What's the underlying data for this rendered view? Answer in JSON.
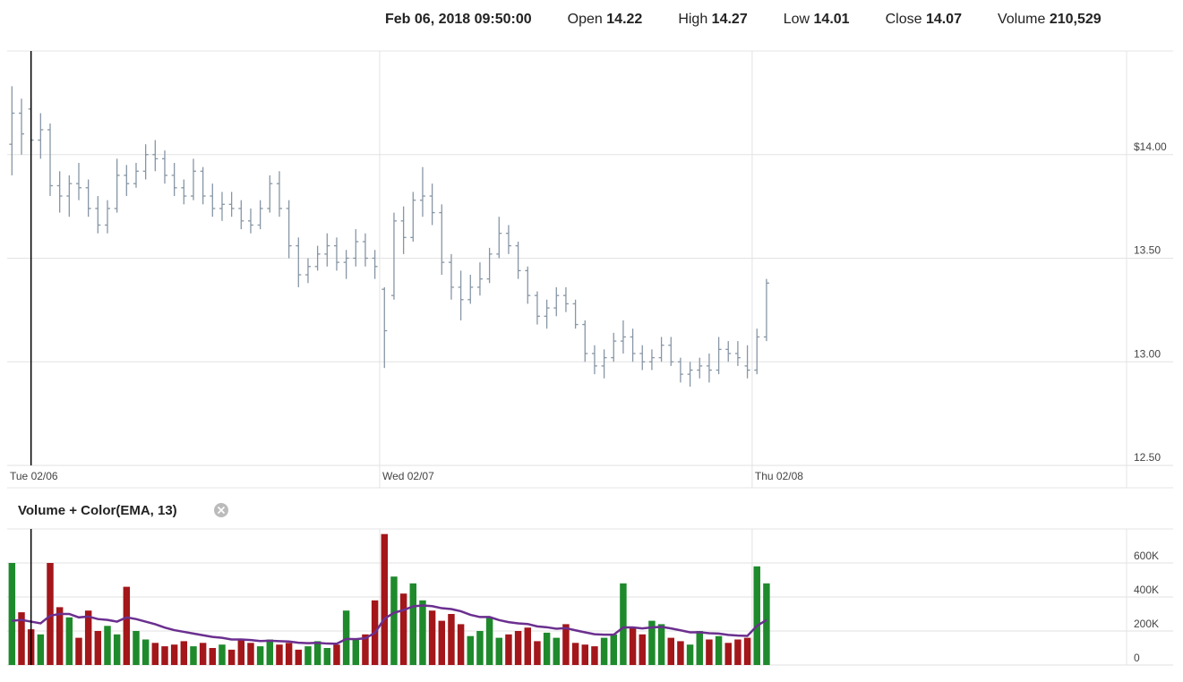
{
  "header": {
    "datetime": "Feb 06, 2018 09:50:00",
    "fields": [
      {
        "label": "Open",
        "value": "14.22"
      },
      {
        "label": "High",
        "value": "14.27"
      },
      {
        "label": "Low",
        "value": "14.01"
      },
      {
        "label": "Close",
        "value": "14.07"
      },
      {
        "label": "Volume",
        "value": "210,529"
      }
    ]
  },
  "chart_data": [
    {
      "type": "ohlc",
      "color": "#8796a5",
      "crosshair_index": 2,
      "xlim": [
        -0.5,
        116.7
      ],
      "xticks": [
        {
          "value": -0.5,
          "label": "Tue 02/06"
        },
        {
          "value": 38.5,
          "label": "Wed 02/07"
        },
        {
          "value": 77.5,
          "label": "Thu 02/08"
        }
      ],
      "ylim": [
        12.5,
        14.5
      ],
      "yticks": [
        {
          "value": 12.5,
          "label": "12.50"
        },
        {
          "value": 13,
          "label": "13.00"
        },
        {
          "value": 13.5,
          "label": "13.50"
        },
        {
          "value": 14,
          "label": "$14.00"
        }
      ],
      "grid": true,
      "ohlc": [
        [
          14.05,
          14.33,
          13.9,
          14.2
        ],
        [
          14.2,
          14.27,
          14.0,
          14.1
        ],
        [
          14.22,
          14.27,
          14.01,
          14.07
        ],
        [
          14.07,
          14.2,
          13.98,
          14.12
        ],
        [
          14.12,
          14.15,
          13.8,
          13.85
        ],
        [
          13.85,
          13.92,
          13.72,
          13.8
        ],
        [
          13.8,
          13.9,
          13.7,
          13.86
        ],
        [
          13.86,
          13.96,
          13.78,
          13.84
        ],
        [
          13.84,
          13.88,
          13.7,
          13.74
        ],
        [
          13.74,
          13.8,
          13.62,
          13.66
        ],
        [
          13.66,
          13.78,
          13.62,
          13.74
        ],
        [
          13.74,
          13.98,
          13.72,
          13.9
        ],
        [
          13.9,
          13.95,
          13.8,
          13.86
        ],
        [
          13.86,
          13.96,
          13.84,
          13.92
        ],
        [
          13.92,
          14.05,
          13.88,
          14.0
        ],
        [
          14.0,
          14.07,
          13.92,
          13.98
        ],
        [
          13.98,
          14.02,
          13.86,
          13.9
        ],
        [
          13.9,
          13.96,
          13.8,
          13.84
        ],
        [
          13.84,
          13.88,
          13.76,
          13.8
        ],
        [
          13.8,
          13.98,
          13.78,
          13.92
        ],
        [
          13.92,
          13.94,
          13.76,
          13.8
        ],
        [
          13.8,
          13.86,
          13.7,
          13.74
        ],
        [
          13.74,
          13.82,
          13.68,
          13.76
        ],
        [
          13.76,
          13.82,
          13.7,
          13.74
        ],
        [
          13.74,
          13.78,
          13.64,
          13.68
        ],
        [
          13.68,
          13.74,
          13.62,
          13.66
        ],
        [
          13.66,
          13.78,
          13.64,
          13.74
        ],
        [
          13.74,
          13.9,
          13.72,
          13.86
        ],
        [
          13.86,
          13.92,
          13.7,
          13.74
        ],
        [
          13.74,
          13.78,
          13.5,
          13.56
        ],
        [
          13.56,
          13.6,
          13.36,
          13.42
        ],
        [
          13.42,
          13.5,
          13.38,
          13.46
        ],
        [
          13.46,
          13.56,
          13.44,
          13.52
        ],
        [
          13.52,
          13.62,
          13.46,
          13.56
        ],
        [
          13.56,
          13.6,
          13.44,
          13.48
        ],
        [
          13.48,
          13.54,
          13.4,
          13.5
        ],
        [
          13.5,
          13.64,
          13.46,
          13.58
        ],
        [
          13.58,
          13.62,
          13.46,
          13.5
        ],
        [
          13.5,
          13.54,
          13.4,
          13.46
        ],
        [
          13.35,
          13.36,
          12.97,
          13.15
        ],
        [
          13.32,
          13.72,
          13.3,
          13.68
        ],
        [
          13.68,
          13.75,
          13.52,
          13.6
        ],
        [
          13.6,
          13.82,
          13.58,
          13.78
        ],
        [
          13.78,
          13.94,
          13.7,
          13.8
        ],
        [
          13.8,
          13.86,
          13.66,
          13.72
        ],
        [
          13.72,
          13.76,
          13.42,
          13.48
        ],
        [
          13.48,
          13.52,
          13.3,
          13.36
        ],
        [
          13.36,
          13.44,
          13.2,
          13.3
        ],
        [
          13.3,
          13.42,
          13.28,
          13.36
        ],
        [
          13.36,
          13.48,
          13.32,
          13.4
        ],
        [
          13.4,
          13.55,
          13.38,
          13.52
        ],
        [
          13.52,
          13.7,
          13.5,
          13.62
        ],
        [
          13.62,
          13.66,
          13.52,
          13.56
        ],
        [
          13.56,
          13.58,
          13.4,
          13.44
        ],
        [
          13.44,
          13.46,
          13.28,
          13.32
        ],
        [
          13.32,
          13.34,
          13.18,
          13.22
        ],
        [
          13.22,
          13.3,
          13.16,
          13.26
        ],
        [
          13.26,
          13.36,
          13.22,
          13.32
        ],
        [
          13.32,
          13.36,
          13.24,
          13.28
        ],
        [
          13.28,
          13.3,
          13.16,
          13.18
        ],
        [
          13.18,
          13.2,
          13.0,
          13.04
        ],
        [
          13.04,
          13.08,
          12.94,
          12.98
        ],
        [
          12.98,
          13.06,
          12.92,
          13.02
        ],
        [
          13.02,
          13.14,
          13.0,
          13.1
        ],
        [
          13.1,
          13.2,
          13.04,
          13.12
        ],
        [
          13.12,
          13.16,
          13.0,
          13.04
        ],
        [
          13.04,
          13.08,
          12.96,
          13.0
        ],
        [
          13.0,
          13.06,
          12.96,
          13.02
        ],
        [
          13.02,
          13.12,
          13.0,
          13.08
        ],
        [
          13.08,
          13.12,
          12.98,
          13.0
        ],
        [
          13.0,
          13.02,
          12.9,
          12.94
        ],
        [
          12.94,
          13.0,
          12.88,
          12.96
        ],
        [
          12.96,
          13.02,
          12.92,
          12.98
        ],
        [
          12.98,
          13.04,
          12.9,
          12.96
        ],
        [
          12.96,
          13.12,
          12.94,
          13.06
        ],
        [
          13.06,
          13.1,
          13.0,
          13.04
        ],
        [
          13.04,
          13.1,
          12.98,
          13.02
        ],
        [
          12.98,
          13.08,
          12.92,
          12.96
        ],
        [
          12.96,
          13.16,
          12.94,
          13.12
        ],
        [
          13.12,
          13.4,
          13.1,
          13.38
        ]
      ]
    },
    {
      "type": "bar",
      "title": "Volume + Color(EMA, 13)",
      "up_color": "#1e8a2c",
      "down_color": "#a3161a",
      "ylim": [
        0,
        800000
      ],
      "yticks": [
        0,
        {
          "value": 200000,
          "label": "200K"
        },
        {
          "value": 400000,
          "label": "400K"
        },
        {
          "value": 600000,
          "label": "600K"
        }
      ],
      "grid": true,
      "values": [
        600000,
        310000,
        210000,
        180000,
        600000,
        340000,
        280000,
        160000,
        320000,
        200000,
        230000,
        180000,
        460000,
        200000,
        150000,
        130000,
        110000,
        120000,
        140000,
        110000,
        130000,
        100000,
        120000,
        90000,
        150000,
        130000,
        110000,
        150000,
        120000,
        130000,
        90000,
        110000,
        140000,
        100000,
        120000,
        320000,
        150000,
        180000,
        380000,
        770000,
        520000,
        420000,
        480000,
        380000,
        320000,
        260000,
        300000,
        240000,
        170000,
        200000,
        280000,
        160000,
        180000,
        200000,
        220000,
        140000,
        190000,
        160000,
        240000,
        130000,
        120000,
        110000,
        160000,
        180000,
        480000,
        220000,
        180000,
        260000,
        240000,
        160000,
        140000,
        120000,
        200000,
        150000,
        170000,
        130000,
        150000,
        160000,
        580000,
        480000
      ],
      "ema": {
        "color": "#6b2f8f",
        "values": [
          260000,
          265000,
          255000,
          245000,
          290000,
          300000,
          300000,
          280000,
          285000,
          270000,
          265000,
          255000,
          280000,
          270000,
          255000,
          240000,
          220000,
          205000,
          195000,
          185000,
          175000,
          165000,
          160000,
          150000,
          150000,
          147000,
          141000,
          143000,
          140000,
          138000,
          131000,
          128000,
          130000,
          126000,
          125000,
          153000,
          152000,
          157000,
          189000,
          272000,
          307000,
          323000,
          345000,
          350000,
          346000,
          334000,
          329000,
          316000,
          295000,
          282000,
          282000,
          264000,
          252000,
          245000,
          241000,
          227000,
          222000,
          213000,
          217000,
          204000,
          192000,
          181000,
          178000,
          178000,
          221000,
          221000,
          215000,
          221000,
          224000,
          215000,
          204000,
          192000,
          193000,
          187000,
          185000,
          177000,
          173000,
          171000,
          230000,
          265000
        ]
      }
    }
  ]
}
